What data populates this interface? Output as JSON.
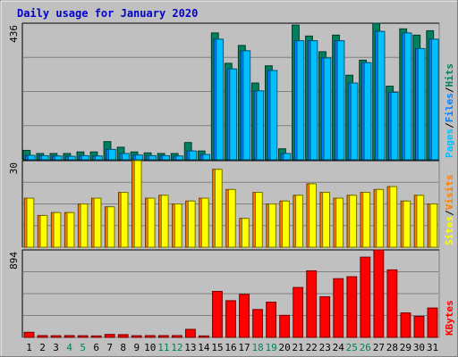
{
  "chart_data": {
    "type": "bar",
    "title": "Daily usage for January 2020",
    "categories": [
      "1",
      "2",
      "3",
      "4",
      "5",
      "6",
      "7",
      "8",
      "9",
      "10",
      "11",
      "12",
      "13",
      "14",
      "15",
      "16",
      "17",
      "18",
      "19",
      "20",
      "21",
      "22",
      "23",
      "24",
      "25",
      "26",
      "27",
      "28",
      "29",
      "30",
      "31"
    ],
    "weekend_days": [
      "4",
      "5",
      "11",
      "12",
      "18",
      "19",
      "25",
      "26"
    ],
    "panels": [
      {
        "name": "pages-files-hits",
        "ymax": 436,
        "ymax_label": "436",
        "right_label": [
          "Pages",
          "/",
          "Files",
          "/",
          "Hits"
        ],
        "series": [
          {
            "name": "Hits",
            "color": "#00805f",
            "values": [
              30,
              20,
              20,
              20,
              25,
              25,
              58,
              40,
              25,
              22,
              20,
              20,
              55,
              28,
              405,
              308,
              365,
              245,
              300,
              35,
              430,
              395,
              345,
              398,
              270,
              318,
              436,
              235,
              418,
              398,
              412
            ]
          },
          {
            "name": "Files",
            "color": "#0080ff",
            "values": [
              14,
              13,
              12,
              11,
              13,
              12,
              33,
              20,
              15,
              13,
              13,
              12,
              28,
              17,
              385,
              290,
              348,
              220,
              285,
              20,
              380,
              380,
              325,
              380,
              245,
              310,
              410,
              215,
              405,
              355,
              385
            ]
          },
          {
            "name": "Pages",
            "color": "#00c0ff",
            "values": [
              14,
              13,
              12,
              11,
              13,
              12,
              33,
              20,
              15,
              13,
              13,
              12,
              28,
              17,
              385,
              290,
              348,
              220,
              285,
              20,
              380,
              380,
              325,
              380,
              245,
              310,
              410,
              215,
              405,
              355,
              385
            ]
          }
        ]
      },
      {
        "name": "sites-visits",
        "ymax": 30,
        "ymax_label": "30",
        "right_label": [
          "Sites",
          "/",
          "Visits"
        ],
        "series": [
          {
            "name": "Visits",
            "color": "#ff8000",
            "values": [
              17,
              11,
              12,
              12,
              15,
              17,
              14,
              19,
              30,
              17,
              18,
              15,
              16,
              17,
              27,
              20,
              10,
              19,
              15,
              16,
              18,
              22,
              19,
              17,
              18,
              19,
              20,
              21,
              16,
              18,
              15
            ]
          },
          {
            "name": "Sites",
            "color": "#ffff00",
            "values": [
              17,
              11,
              12,
              12,
              15,
              17,
              14,
              19,
              30,
              17,
              18,
              15,
              16,
              17,
              27,
              20,
              10,
              19,
              15,
              16,
              18,
              22,
              19,
              17,
              18,
              19,
              20,
              21,
              16,
              18,
              15
            ]
          }
        ]
      },
      {
        "name": "kbytes",
        "ymax": 894,
        "ymax_label": "894",
        "right_label": [
          "KBytes"
        ],
        "series": [
          {
            "name": "KBytes",
            "color": "#ff0000",
            "values": [
              52,
              18,
              17,
              18,
              17,
              15,
              30,
              28,
              17,
              18,
              18,
              18,
              82,
              15,
              470,
              375,
              440,
              285,
              360,
              225,
              510,
              680,
              415,
              600,
              620,
              820,
              894,
              690,
              250,
              215,
              300
            ]
          }
        ]
      }
    ]
  }
}
